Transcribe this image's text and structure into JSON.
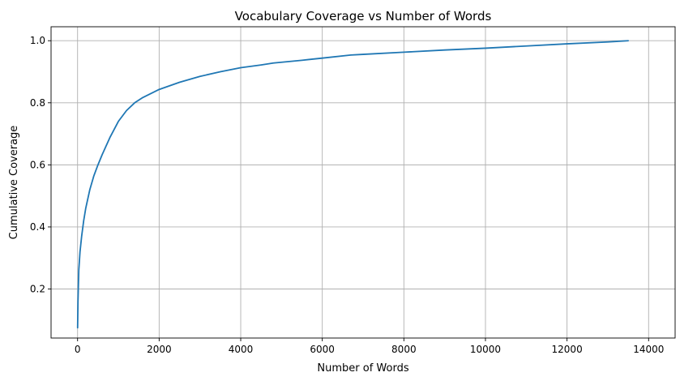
{
  "chart_data": {
    "type": "line",
    "title": "Vocabulary Coverage vs Number of Words",
    "xlabel": "Number of Words",
    "ylabel": "Cumulative Coverage",
    "xlim": [
      -650,
      14650
    ],
    "ylim": [
      0.042,
      1.045
    ],
    "xticks": [
      0,
      2000,
      4000,
      6000,
      8000,
      10000,
      12000,
      14000
    ],
    "xtick_labels": [
      "0",
      "2000",
      "4000",
      "6000",
      "8000",
      "10000",
      "12000",
      "14000"
    ],
    "yticks": [
      0.2,
      0.4,
      0.6,
      0.8,
      1.0
    ],
    "ytick_labels": [
      "0.2",
      "0.4",
      "0.6",
      "0.8",
      "1.0"
    ],
    "grid": true,
    "series": [
      {
        "color": "#1f77b4",
        "x": [
          1,
          10,
          30,
          60,
          100,
          150,
          200,
          300,
          400,
          500,
          600,
          800,
          1000,
          1200,
          1400,
          1600,
          1800,
          2000,
          2500,
          3000,
          3500,
          4000,
          4500,
          4800,
          5500,
          6000,
          6700,
          7000,
          8000,
          9000,
          10000,
          11000,
          12000,
          13000,
          13500
        ],
        "y": [
          0.075,
          0.16,
          0.26,
          0.32,
          0.37,
          0.42,
          0.46,
          0.52,
          0.565,
          0.6,
          0.632,
          0.69,
          0.74,
          0.775,
          0.8,
          0.817,
          0.83,
          0.843,
          0.866,
          0.885,
          0.9,
          0.913,
          0.922,
          0.928,
          0.937,
          0.944,
          0.954,
          0.956,
          0.963,
          0.97,
          0.976,
          0.983,
          0.99,
          0.996,
          1.0
        ]
      }
    ]
  }
}
